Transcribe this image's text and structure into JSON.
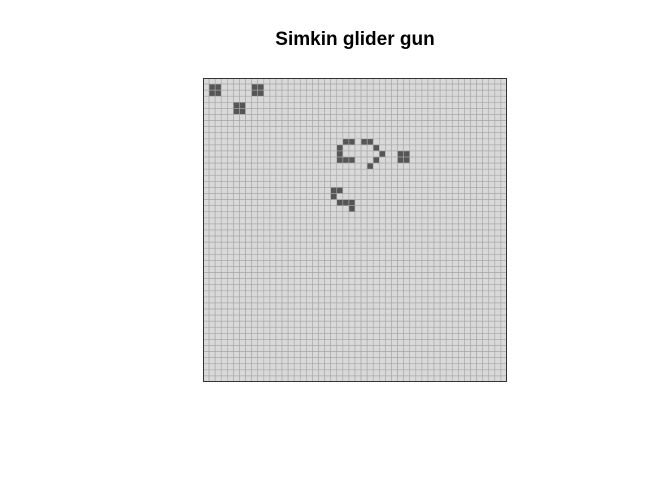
{
  "title": "Simkin glider gun",
  "grid": {
    "rows": 50,
    "cols": 50,
    "colors": {
      "dead": "#d9d9d9",
      "alive": "#555555",
      "grid_line": "#a6a6a6",
      "border": "#333333"
    },
    "live_cells": [
      [
        1,
        1
      ],
      [
        1,
        2
      ],
      [
        2,
        1
      ],
      [
        2,
        2
      ],
      [
        1,
        8
      ],
      [
        1,
        9
      ],
      [
        2,
        8
      ],
      [
        2,
        9
      ],
      [
        4,
        5
      ],
      [
        4,
        6
      ],
      [
        5,
        5
      ],
      [
        5,
        6
      ],
      [
        10,
        23
      ],
      [
        10,
        24
      ],
      [
        10,
        26
      ],
      [
        10,
        27
      ],
      [
        11,
        22
      ],
      [
        11,
        28
      ],
      [
        12,
        22
      ],
      [
        12,
        29
      ],
      [
        13,
        22
      ],
      [
        13,
        23
      ],
      [
        13,
        24
      ],
      [
        13,
        28
      ],
      [
        14,
        27
      ],
      [
        12,
        32
      ],
      [
        12,
        33
      ],
      [
        13,
        32
      ],
      [
        13,
        33
      ],
      [
        18,
        21
      ],
      [
        18,
        22
      ],
      [
        19,
        21
      ],
      [
        20,
        22
      ],
      [
        20,
        23
      ],
      [
        20,
        24
      ],
      [
        21,
        24
      ]
    ]
  }
}
